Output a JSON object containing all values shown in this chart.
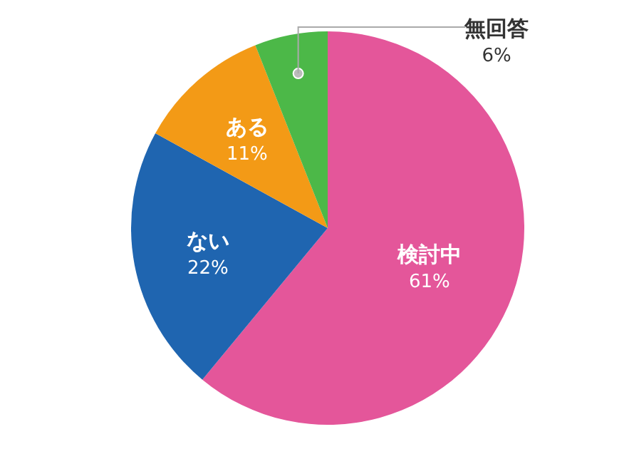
{
  "chart_data": {
    "type": "pie",
    "categories": [
      "検討中",
      "ない",
      "ある",
      "無回答"
    ],
    "values": [
      61,
      22,
      11,
      6
    ],
    "value_labels": [
      "61%",
      "22%",
      "11%",
      "6%"
    ],
    "colors": [
      "#e4569a",
      "#1f65b0",
      "#f39a16",
      "#4cb848"
    ],
    "legend": false
  }
}
